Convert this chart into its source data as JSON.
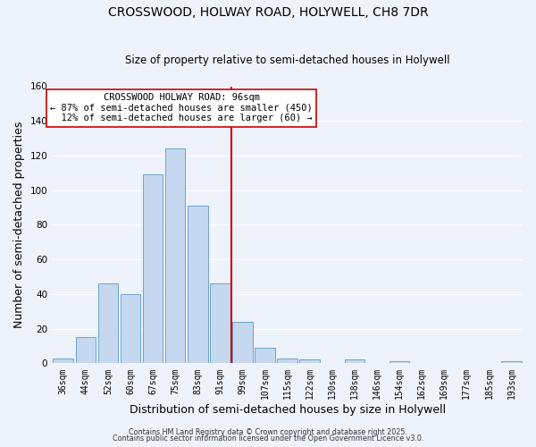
{
  "title": "CROSSWOOD, HOLWAY ROAD, HOLYWELL, CH8 7DR",
  "subtitle": "Size of property relative to semi-detached houses in Holywell",
  "xlabel": "Distribution of semi-detached houses by size in Holywell",
  "ylabel": "Number of semi-detached properties",
  "bar_labels": [
    "36sqm",
    "44sqm",
    "52sqm",
    "60sqm",
    "67sqm",
    "75sqm",
    "83sqm",
    "91sqm",
    "99sqm",
    "107sqm",
    "115sqm",
    "122sqm",
    "130sqm",
    "138sqm",
    "146sqm",
    "154sqm",
    "162sqm",
    "169sqm",
    "177sqm",
    "185sqm",
    "193sqm"
  ],
  "bar_heights": [
    3,
    15,
    46,
    40,
    109,
    124,
    91,
    46,
    24,
    9,
    3,
    2,
    0,
    2,
    0,
    1,
    0,
    0,
    0,
    0,
    1
  ],
  "bar_color": "#c5d8ef",
  "bar_edge_color": "#6ba3d0",
  "ylim": [
    0,
    160
  ],
  "yticks": [
    0,
    20,
    40,
    60,
    80,
    100,
    120,
    140,
    160
  ],
  "pct_smaller": 87,
  "count_smaller": 450,
  "pct_larger": 12,
  "count_larger": 60,
  "property_sqm": 96,
  "footer_line1": "Contains HM Land Registry data © Crown copyright and database right 2025.",
  "footer_line2": "Contains public sector information licensed under the Open Government Licence v3.0.",
  "bg_color": "#eef2fb",
  "grid_color": "#ffffff",
  "title_fontsize": 10,
  "subtitle_fontsize": 8.5,
  "axis_label_fontsize": 9,
  "tick_fontsize": 7,
  "annotation_fontsize": 7.5,
  "footer_fontsize": 5.8
}
